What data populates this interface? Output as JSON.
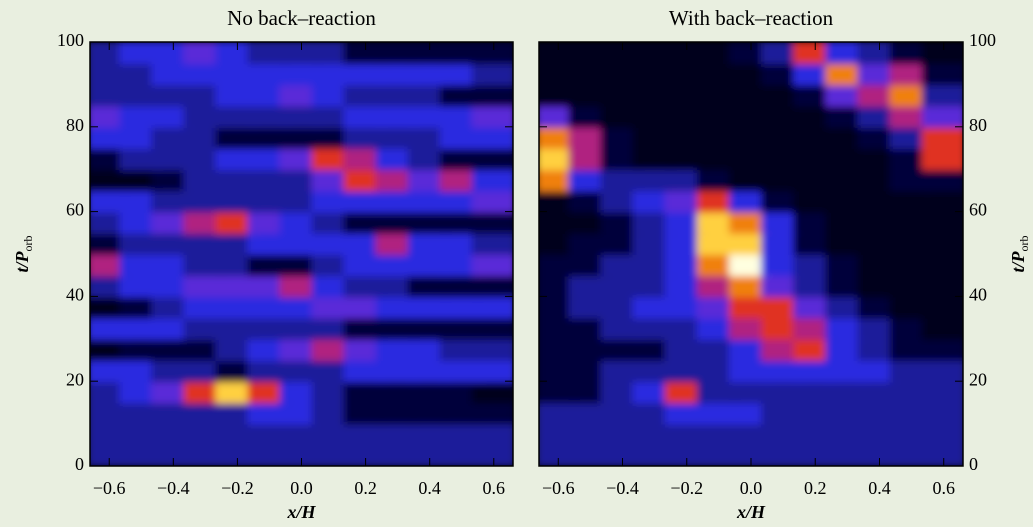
{
  "chart_data": [
    {
      "type": "heatmap",
      "title": "No back–reaction",
      "xlabel": "x/H",
      "ylabel": "t/P",
      "ylabel_subscript": "orb",
      "yaxis_side": "left",
      "xlim": [
        -0.66,
        0.66
      ],
      "ylim": [
        0,
        100
      ],
      "zlim": [
        0,
        10
      ],
      "xticks": [
        {
          "value": -0.6,
          "label": "−0.6"
        },
        {
          "value": -0.4,
          "label": "−0.4"
        },
        {
          "value": -0.2,
          "label": "−0.2"
        },
        {
          "value": 0,
          "label": "0.0"
        },
        0.2,
        0.4,
        0.6
      ],
      "yticks": [
        0,
        20,
        40,
        60,
        80,
        100
      ],
      "x": [
        -0.6,
        -0.5,
        -0.4,
        -0.3,
        -0.2,
        -0.1,
        0,
        0.1,
        0.2,
        0.3,
        0.4,
        0.5,
        0.6
      ],
      "y": [
        2.5,
        7.5,
        12.5,
        17.5,
        22.5,
        27.5,
        32.5,
        37.5,
        42.5,
        47.5,
        52.5,
        57.5,
        62.5,
        67.5,
        72.5,
        77.5,
        82.5,
        87.5,
        92.5,
        97.5
      ],
      "values": [
        [
          3,
          3,
          3,
          3,
          3,
          3,
          3,
          3,
          3,
          3,
          3,
          3,
          3
        ],
        [
          3,
          3,
          3,
          3,
          3,
          3,
          3,
          3,
          3,
          3,
          3,
          3,
          3
        ],
        [
          3,
          3,
          3,
          3,
          3,
          4,
          4,
          3,
          2,
          2,
          2,
          2,
          2
        ],
        [
          3,
          4,
          5,
          7,
          9,
          7,
          4,
          3,
          2,
          2,
          2,
          2,
          1
        ],
        [
          4,
          4,
          3,
          3,
          2,
          3,
          3,
          3,
          4,
          4,
          4,
          4,
          4
        ],
        [
          1,
          2,
          2,
          2,
          3,
          4,
          5,
          6,
          5,
          4,
          4,
          3,
          3
        ],
        [
          4,
          4,
          4,
          3,
          3,
          3,
          3,
          3,
          2,
          2,
          2,
          2,
          2
        ],
        [
          1,
          2,
          3,
          4,
          4,
          4,
          4,
          5,
          5,
          4,
          4,
          4,
          4
        ],
        [
          3,
          4,
          4,
          5,
          5,
          5,
          6,
          4,
          3,
          3,
          2,
          2,
          2
        ],
        [
          6,
          4,
          4,
          3,
          3,
          2,
          2,
          3,
          4,
          4,
          4,
          4,
          5
        ],
        [
          2,
          3,
          3,
          3,
          3,
          4,
          4,
          4,
          4,
          6,
          4,
          4,
          3
        ],
        [
          3,
          4,
          5,
          6,
          7,
          5,
          4,
          3,
          2,
          2,
          2,
          2,
          2
        ],
        [
          4,
          4,
          3,
          3,
          3,
          3,
          3,
          4,
          4,
          4,
          4,
          4,
          5
        ],
        [
          1,
          1,
          2,
          3,
          3,
          3,
          3,
          5,
          7,
          6,
          5,
          6,
          4
        ],
        [
          2,
          3,
          3,
          3,
          4,
          4,
          5,
          7,
          6,
          4,
          3,
          2,
          2
        ],
        [
          4,
          4,
          3,
          3,
          2,
          2,
          2,
          2,
          3,
          3,
          3,
          4,
          4
        ],
        [
          5,
          4,
          4,
          3,
          3,
          3,
          3,
          3,
          4,
          4,
          4,
          4,
          5
        ],
        [
          3,
          3,
          3,
          3,
          4,
          4,
          5,
          4,
          3,
          3,
          3,
          2,
          2
        ],
        [
          3,
          3,
          4,
          4,
          4,
          4,
          4,
          4,
          4,
          4,
          4,
          4,
          3
        ],
        [
          3,
          4,
          4,
          5,
          4,
          3,
          3,
          3,
          2,
          2,
          2,
          2,
          2
        ]
      ]
    },
    {
      "type": "heatmap",
      "title": "With back–reaction",
      "xlabel": "x/H",
      "ylabel": "t/P",
      "ylabel_subscript": "orb",
      "yaxis_side": "right",
      "xlim": [
        -0.66,
        0.66
      ],
      "ylim": [
        0,
        100
      ],
      "zlim": [
        0,
        10
      ],
      "xticks": [
        {
          "value": -0.6,
          "label": "−0.6"
        },
        {
          "value": -0.4,
          "label": "−0.4"
        },
        {
          "value": -0.2,
          "label": "−0.2"
        },
        {
          "value": 0,
          "label": "0.0"
        },
        0.2,
        0.4,
        0.6
      ],
      "yticks": [
        0,
        20,
        40,
        60,
        80,
        100
      ],
      "x": [
        -0.6,
        -0.5,
        -0.4,
        -0.3,
        -0.2,
        -0.1,
        0,
        0.1,
        0.2,
        0.3,
        0.4,
        0.5,
        0.6
      ],
      "y": [
        2.5,
        7.5,
        12.5,
        17.5,
        22.5,
        27.5,
        32.5,
        37.5,
        42.5,
        47.5,
        52.5,
        57.5,
        62.5,
        67.5,
        72.5,
        77.5,
        82.5,
        87.5,
        92.5,
        97.5
      ],
      "values": [
        [
          3,
          3,
          3,
          3,
          3,
          3,
          3,
          3,
          3,
          3,
          3,
          3,
          3
        ],
        [
          3,
          3,
          3,
          3,
          3,
          3,
          3,
          3,
          3,
          3,
          3,
          3,
          3
        ],
        [
          3,
          3,
          3,
          3,
          4,
          4,
          4,
          3,
          3,
          3,
          3,
          3,
          3
        ],
        [
          2,
          2,
          3,
          4,
          7,
          3,
          3,
          3,
          3,
          3,
          3,
          3,
          3
        ],
        [
          2,
          2,
          3,
          3,
          3,
          3,
          4,
          4,
          4,
          4,
          4,
          3,
          3
        ],
        [
          2,
          2,
          2,
          2,
          3,
          3,
          4,
          6,
          7,
          4,
          3,
          2,
          2
        ],
        [
          2,
          2,
          3,
          3,
          3,
          4,
          6,
          7,
          6,
          4,
          3,
          2,
          1
        ],
        [
          2,
          3,
          3,
          4,
          4,
          5,
          7,
          7,
          5,
          3,
          2,
          1,
          1
        ],
        [
          2,
          3,
          3,
          3,
          4,
          6,
          8,
          5,
          3,
          2,
          1,
          1,
          1
        ],
        [
          2,
          2,
          3,
          3,
          4,
          8,
          10,
          4,
          3,
          2,
          1,
          1,
          1
        ],
        [
          1,
          2,
          2,
          3,
          4,
          9,
          9,
          4,
          2,
          1,
          1,
          1,
          1
        ],
        [
          1,
          1,
          2,
          3,
          4,
          9,
          8,
          4,
          2,
          1,
          1,
          1,
          1
        ],
        [
          1,
          2,
          3,
          4,
          5,
          7,
          4,
          2,
          1,
          1,
          1,
          1,
          1
        ],
        [
          8,
          4,
          3,
          3,
          3,
          2,
          1,
          1,
          1,
          1,
          1,
          2,
          2
        ],
        [
          9,
          6,
          2,
          1,
          1,
          1,
          1,
          1,
          1,
          1,
          1,
          2,
          7
        ],
        [
          8,
          6,
          2,
          1,
          1,
          1,
          1,
          1,
          1,
          1,
          2,
          3,
          7
        ],
        [
          5,
          2,
          1,
          1,
          1,
          1,
          1,
          1,
          1,
          2,
          3,
          6,
          5
        ],
        [
          1,
          1,
          1,
          1,
          1,
          1,
          1,
          1,
          2,
          5,
          6,
          8,
          3
        ],
        [
          1,
          1,
          1,
          1,
          1,
          1,
          1,
          2,
          4,
          8,
          5,
          6,
          2
        ],
        [
          1,
          1,
          1,
          1,
          1,
          1,
          2,
          3,
          7,
          4,
          3,
          2,
          1
        ]
      ]
    }
  ]
}
